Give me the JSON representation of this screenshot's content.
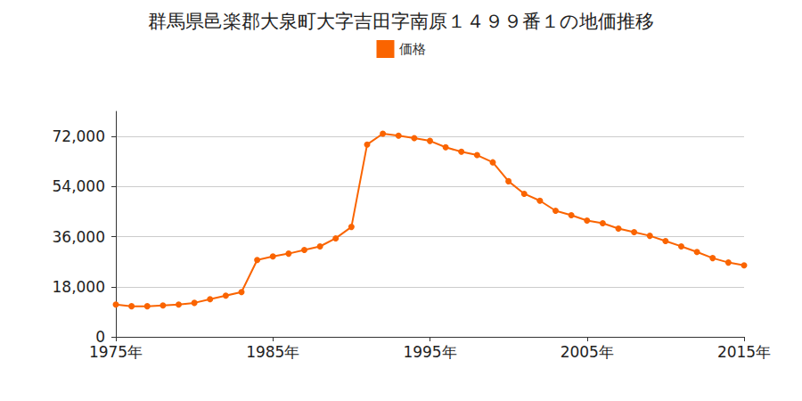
{
  "chart_data": {
    "type": "line",
    "title": "群馬県邑楽郡大泉町大字吉田字南原１４９９番１の地価推移",
    "series": [
      {
        "name": "価格",
        "color": "#fa6400",
        "marker": "circle",
        "values": [
          11600,
          11000,
          11000,
          11300,
          11600,
          12200,
          13500,
          14800,
          16100,
          27600,
          28900,
          29900,
          31200,
          32500,
          35400,
          39500,
          69100,
          73000,
          72300,
          71400,
          70400,
          68100,
          66500,
          65300,
          62700,
          55900,
          51400,
          48900,
          45300,
          43700,
          41800,
          40800,
          38900,
          37600,
          36300,
          34400,
          32500,
          30500,
          28300,
          26700,
          25700
        ]
      }
    ],
    "x": [
      1975,
      1976,
      1977,
      1978,
      1979,
      1980,
      1981,
      1982,
      1983,
      1984,
      1985,
      1986,
      1987,
      1988,
      1989,
      1990,
      1991,
      1992,
      1993,
      1994,
      1995,
      1996,
      1997,
      1998,
      1999,
      2000,
      2001,
      2002,
      2003,
      2004,
      2005,
      2006,
      2007,
      2008,
      2009,
      2010,
      2011,
      2012,
      2013,
      2014,
      2015
    ],
    "xlim": [
      1975,
      2015
    ],
    "xticks": [
      {
        "value": 1975,
        "label": "1975年"
      },
      {
        "value": 1985,
        "label": "1985年"
      },
      {
        "value": 1995,
        "label": "1995年"
      },
      {
        "value": 2005,
        "label": "2005年"
      },
      {
        "value": 2015,
        "label": "2015年"
      }
    ],
    "ylim": [
      0,
      81000
    ],
    "yticks": [
      0,
      {
        "value": 18000,
        "label": "18,000"
      },
      {
        "value": 36000,
        "label": "36,000"
      },
      {
        "value": 54000,
        "label": "54,000"
      },
      {
        "value": 72000,
        "label": "72,000"
      }
    ],
    "grid": true,
    "legend": "top"
  }
}
